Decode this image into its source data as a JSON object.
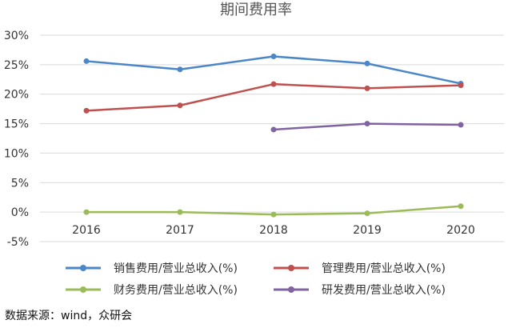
{
  "chart_data": {
    "type": "line",
    "title": "期间费用率",
    "x": [
      "2016",
      "2017",
      "2018",
      "2019",
      "2020"
    ],
    "y_ticks": [
      "30%",
      "25%",
      "20%",
      "15%",
      "10%",
      "5%",
      "0%",
      "-5%"
    ],
    "ylim": [
      -5,
      30
    ],
    "grid": true,
    "legend_position": "bottom",
    "series": [
      {
        "name": "销售费用/营业总收入(%)",
        "color": "#4a86c8",
        "values": [
          25.6,
          24.2,
          26.4,
          25.2,
          21.8
        ]
      },
      {
        "name": "管理费用/营业总收入(%)",
        "color": "#c0504d",
        "values": [
          17.2,
          18.1,
          21.7,
          21.0,
          21.5
        ]
      },
      {
        "name": "财务费用/营业总收入(%)",
        "color": "#9bbb59",
        "values": [
          0.0,
          0.0,
          -0.4,
          -0.2,
          1.0
        ]
      },
      {
        "name": "研发费用/营业总收入(%)",
        "color": "#8064a2",
        "values": [
          null,
          null,
          14.0,
          15.0,
          14.8
        ]
      }
    ]
  },
  "source_text": "数据来源：wind，众研会"
}
